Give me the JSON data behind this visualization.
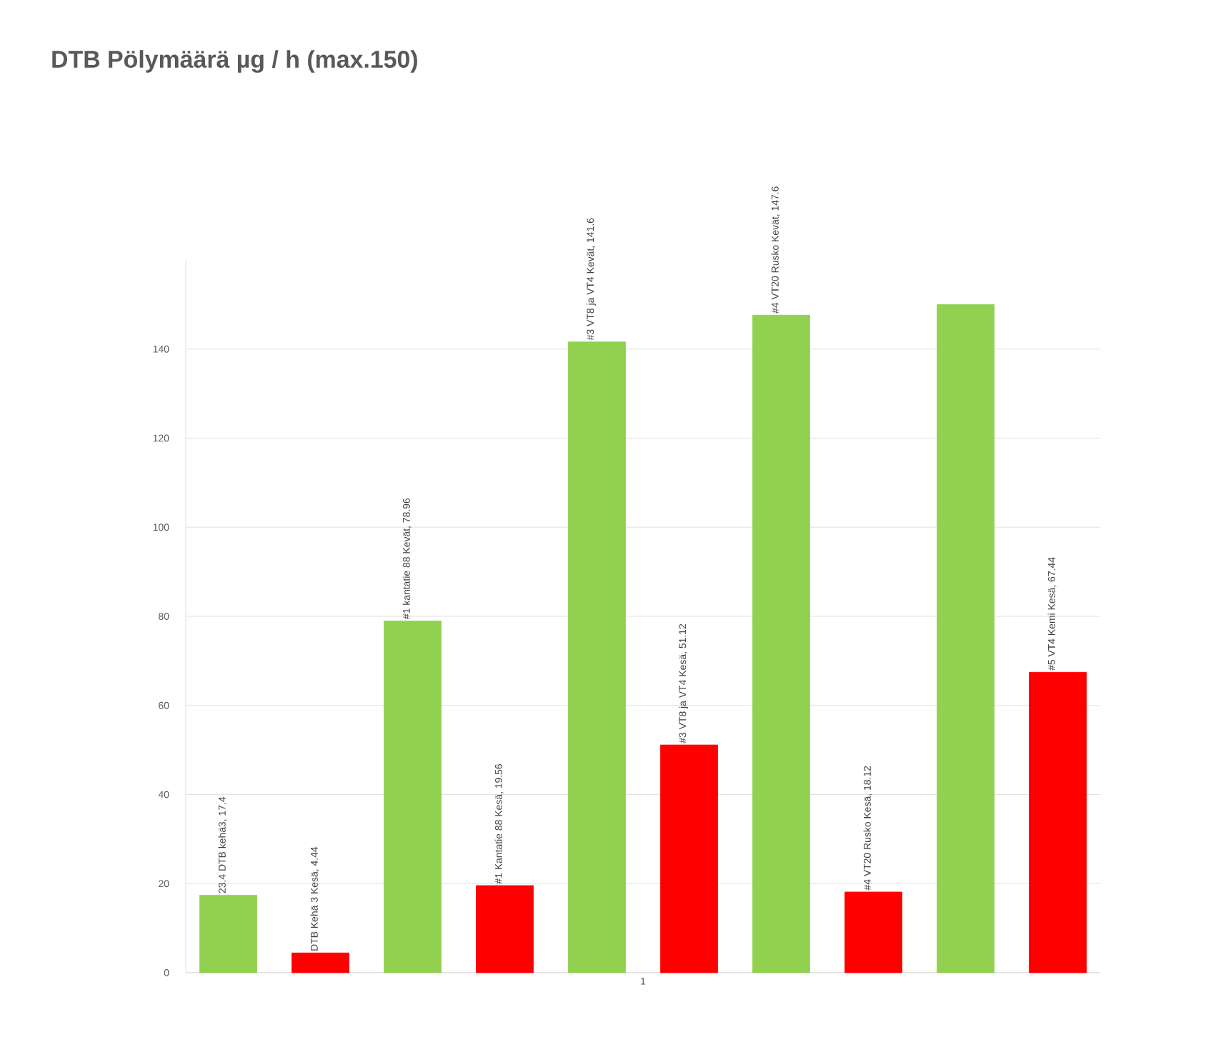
{
  "chart_data": {
    "type": "bar",
    "title": "DTB Pölymäärä µg / h (max.150)",
    "categories": [
      "1"
    ],
    "ylim": [
      0,
      160
    ],
    "yticks": [
      0,
      20,
      40,
      60,
      80,
      100,
      120,
      140
    ],
    "grid": "y",
    "series": [
      {
        "color": "#92d050",
        "values": [
          17.4
        ],
        "value_labels": [
          "23.4 DTB kehä3, 17.4"
        ]
      },
      {
        "color": "#ff0000",
        "values": [
          4.44
        ],
        "value_labels": [
          "DTB Kehä 3 Kesä, 4.44"
        ]
      },
      {
        "color": "#92d050",
        "values": [
          78.96
        ],
        "value_labels": [
          "#1 kantatie 88 Kevät, 78.96"
        ]
      },
      {
        "color": "#ff0000",
        "values": [
          19.56
        ],
        "value_labels": [
          "#1 Kantatie 88 Kesä, 19.56"
        ]
      },
      {
        "color": "#92d050",
        "values": [
          141.6
        ],
        "value_labels": [
          "#3 VT8 ja VT4 Kevät, 141.6"
        ]
      },
      {
        "color": "#ff0000",
        "values": [
          51.12
        ],
        "value_labels": [
          "#3 VT8 ja VT4 Kesä, 51.12"
        ]
      },
      {
        "color": "#92d050",
        "values": [
          147.6
        ],
        "value_labels": [
          "#4 VT20 Rusko Kevät, 147.6"
        ]
      },
      {
        "color": "#ff0000",
        "values": [
          18.12
        ],
        "value_labels": [
          "#4 VT20 Rusko Kesä, 18.12"
        ]
      },
      {
        "color": "#92d050",
        "values": [
          150
        ],
        "value_labels": [
          null
        ]
      },
      {
        "color": "#ff0000",
        "values": [
          67.44
        ],
        "value_labels": [
          "#5 VT4 Kemi Kesä, 67.44"
        ]
      }
    ]
  }
}
